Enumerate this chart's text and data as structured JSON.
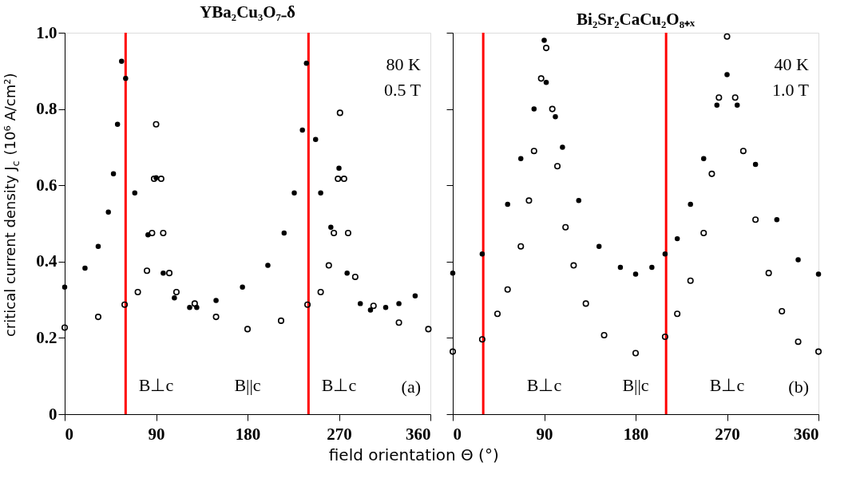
{
  "chart_data": [
    {
      "type": "scatter",
      "title": "YBa₂Cu₃O₇₋δ",
      "xlabel": "field orientation Θ (°)",
      "ylabel": "critical current density J$_{c}$ (10⁶ A/cm²)",
      "xlim": [
        0,
        360
      ],
      "xticks": [
        0,
        90,
        180,
        270,
        360
      ],
      "ylim": [
        0,
        1
      ],
      "yticks": [
        0,
        0.2,
        0.4,
        0.6,
        0.8,
        {
          "value": 1,
          "label": "1.0"
        }
      ],
      "marker": "circle",
      "series": [
        {
          "color": "#000000",
          "x": [
            0,
            20,
            33,
            43,
            48,
            52,
            56,
            60,
            69,
            82,
            90,
            97,
            108,
            123,
            130,
            149,
            175,
            200,
            216,
            226,
            234,
            238,
            247,
            252,
            262,
            270,
            278,
            291,
            301,
            316,
            329,
            345
          ],
          "values": [
            0.333,
            0.383,
            0.44,
            0.53,
            0.63,
            0.76,
            0.925,
            0.88,
            0.58,
            0.47,
            0.62,
            0.37,
            0.305,
            0.28,
            0.28,
            0.298,
            0.333,
            0.39,
            0.475,
            0.58,
            0.745,
            0.92,
            0.72,
            0.58,
            0.49,
            0.645,
            0.37,
            0.29,
            0.273,
            0.28,
            0.29,
            0.31
          ]
        },
        {
          "color": "#000000",
          "x": [
            0,
            33,
            59,
            72,
            81,
            86,
            88,
            90,
            95,
            97,
            103,
            110,
            128,
            149,
            180,
            213,
            239,
            252,
            260,
            265,
            269,
            271,
            275,
            279,
            286,
            304,
            329,
            358
          ],
          "values": [
            0.227,
            0.255,
            0.287,
            0.32,
            0.376,
            0.475,
            0.617,
            0.76,
            0.617,
            0.475,
            0.37,
            0.32,
            0.29,
            0.255,
            0.223,
            0.245,
            0.287,
            0.32,
            0.39,
            0.475,
            0.617,
            0.79,
            0.617,
            0.475,
            0.36,
            0.284,
            0.24,
            0.223
          ]
        }
      ],
      "ref_lines": [
        {
          "axis": "x",
          "value": 60,
          "color": "#ff0000"
        },
        {
          "axis": "x",
          "value": 240,
          "color": "#ff0000"
        }
      ],
      "annotations": [
        "B⊥c",
        "B||c",
        "B⊥c",
        "80 K",
        "0.5 T",
        "(a)"
      ]
    },
    {
      "type": "scatter",
      "title": "Bi₂Sr₂CaCu₂O₈₊ₓ",
      "xlim": [
        0,
        360
      ],
      "xticks": [
        0,
        90,
        180,
        270,
        360
      ],
      "ylim": [
        0,
        1
      ],
      "yticks": [
        0,
        0.2,
        0.4,
        0.6,
        0.8,
        1
      ],
      "tick_labels": "x",
      "marker": "circle",
      "series": [
        {
          "color": "#000000",
          "x": [
            0,
            29,
            54,
            67,
            80,
            90,
            92,
            101,
            108,
            124,
            144,
            165,
            180,
            196,
            209,
            221,
            234,
            247,
            260,
            270,
            280,
            298,
            319,
            340,
            360
          ],
          "values": [
            0.37,
            0.42,
            0.55,
            0.67,
            0.8,
            0.98,
            0.87,
            0.78,
            0.7,
            0.56,
            0.44,
            0.385,
            0.367,
            0.385,
            0.42,
            0.46,
            0.55,
            0.67,
            0.81,
            0.89,
            0.81,
            0.655,
            0.51,
            0.405,
            0.367
          ]
        },
        {
          "color": "#000000",
          "x": [
            0,
            29,
            44,
            54,
            67,
            75,
            80,
            87,
            92,
            98,
            103,
            111,
            119,
            131,
            149,
            180,
            209,
            221,
            234,
            247,
            255,
            262,
            270,
            278,
            286,
            298,
            311,
            324,
            340,
            360
          ],
          "values": [
            0.164,
            0.196,
            0.263,
            0.327,
            0.44,
            0.56,
            0.69,
            0.88,
            0.96,
            0.8,
            0.65,
            0.49,
            0.39,
            0.29,
            0.207,
            0.16,
            0.203,
            0.263,
            0.35,
            0.475,
            0.63,
            0.83,
            0.99,
            0.83,
            0.69,
            0.51,
            0.37,
            0.27,
            0.19,
            0.164
          ]
        }
      ],
      "ref_lines": [
        {
          "axis": "x",
          "value": 30,
          "color": "#ff0000"
        },
        {
          "axis": "x",
          "value": 210,
          "color": "#ff0000"
        }
      ],
      "annotations": [
        "B⊥c",
        "B||c",
        "B⊥c",
        "40 K",
        "1.0 T",
        "(b)"
      ]
    }
  ]
}
